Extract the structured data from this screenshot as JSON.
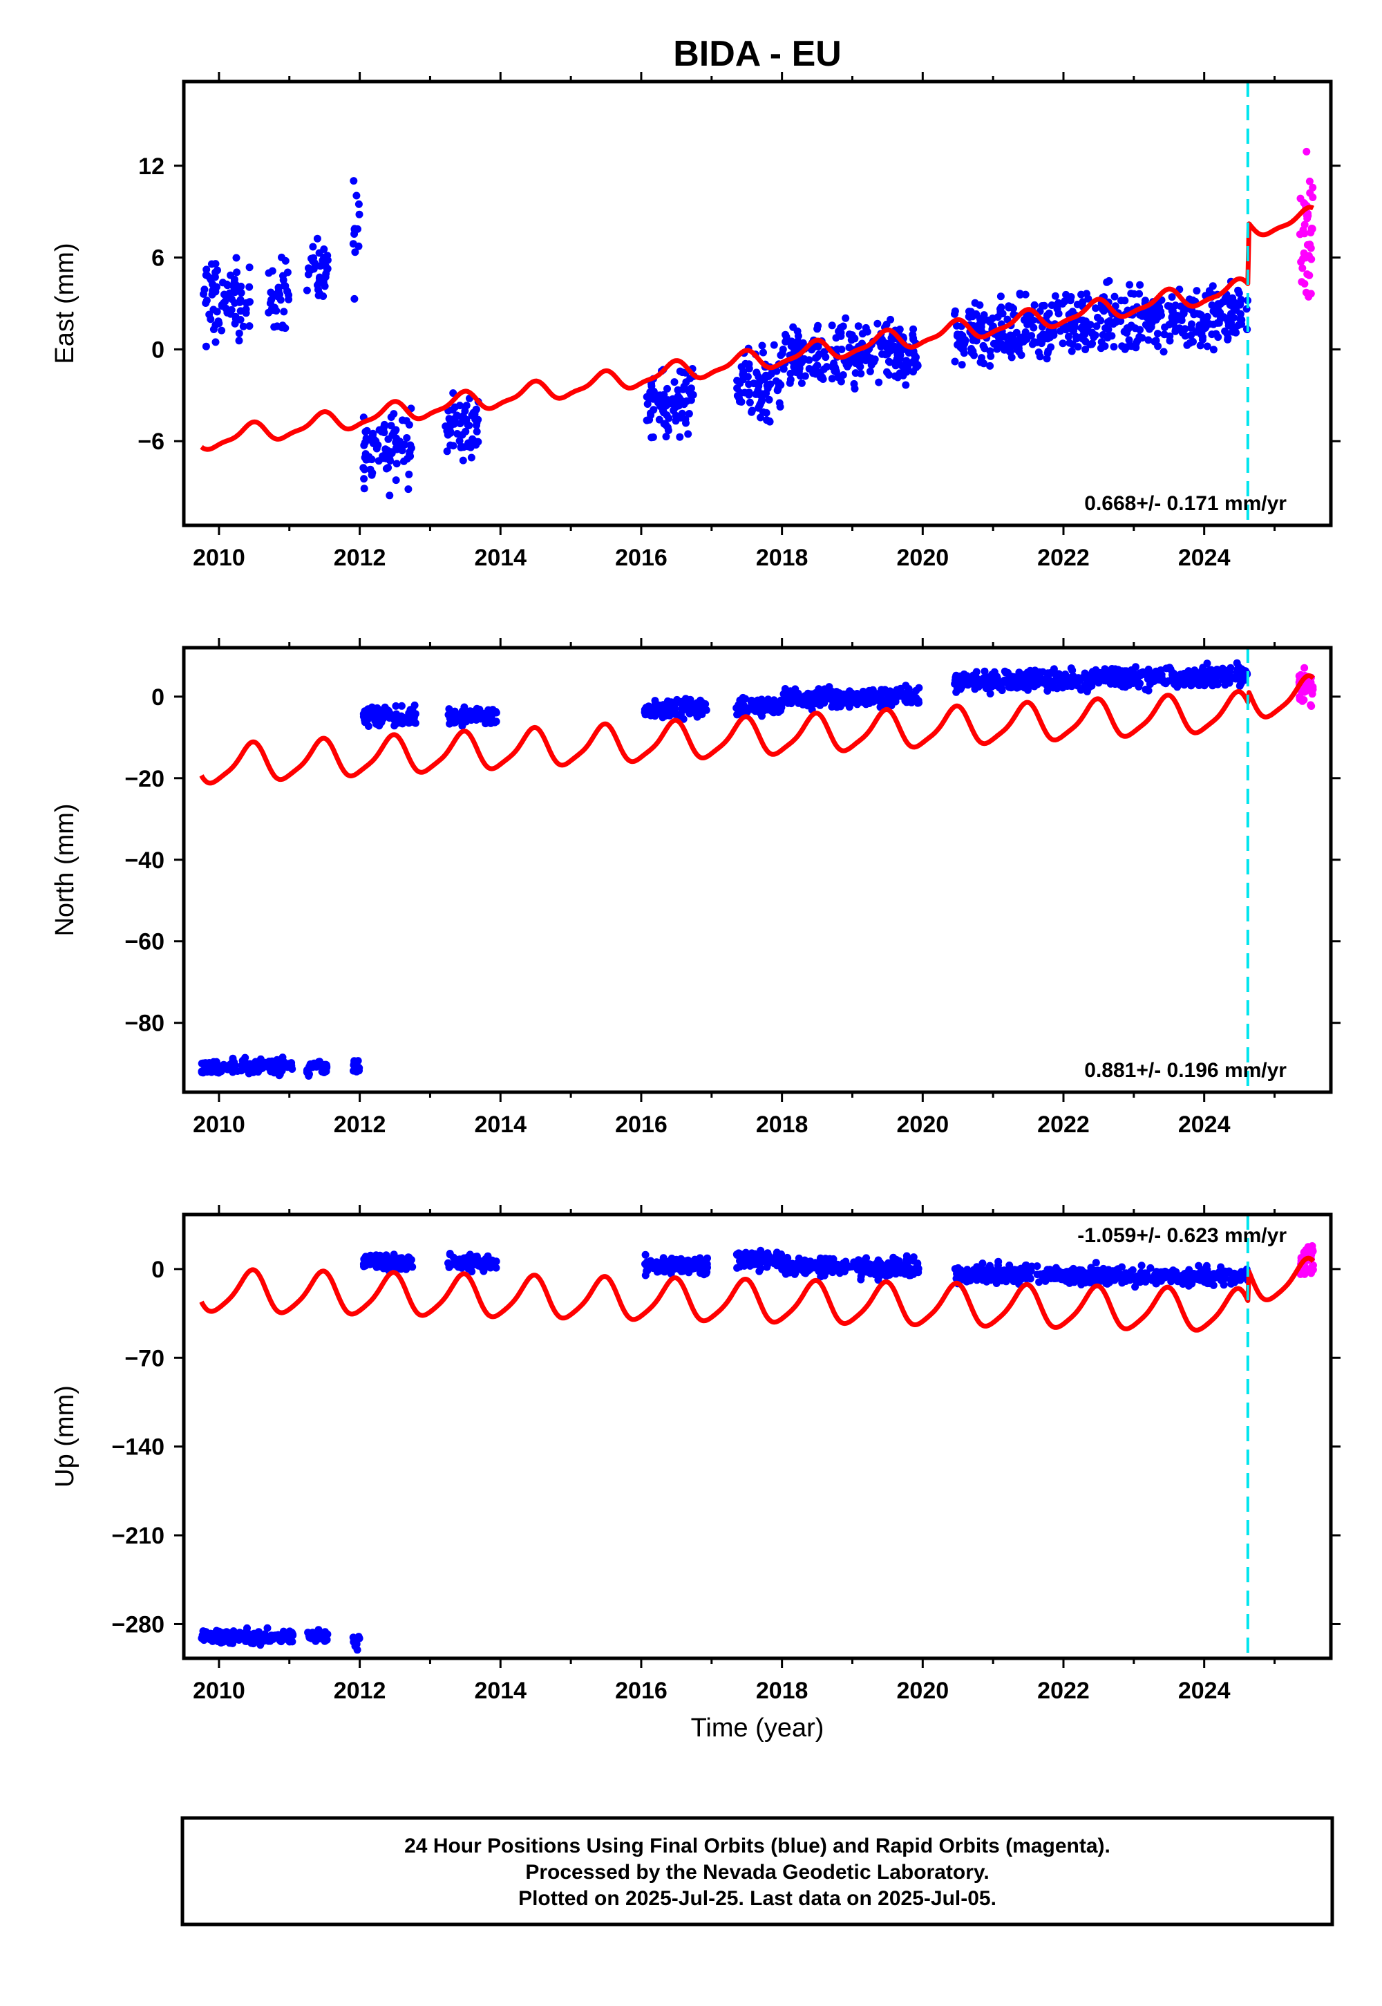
{
  "title": "BIDA - EU",
  "xlabel": "Time (year)",
  "footer": [
    "24 Hour Positions Using Final Orbits (blue) and Rapid Orbits (magenta).",
    "Processed by the Nevada Geodetic Laboratory.",
    "Plotted on 2025-Jul-25. Last data on 2025-Jul-05."
  ],
  "colors": {
    "final": "#0000ff",
    "rapid": "#ff00ff",
    "model": "#ff0000",
    "break": "#00e5ee"
  },
  "chart_data": [
    {
      "type": "scatter",
      "ylabel": "East (mm)",
      "xlim": [
        2009.5,
        2025.8
      ],
      "ylim": [
        -11.5,
        17.5
      ],
      "xticks": [
        2010,
        2012,
        2014,
        2016,
        2018,
        2020,
        2022,
        2024
      ],
      "yticks": [
        -6,
        0,
        6,
        12
      ],
      "rate_label": "0.668+/- 0.171 mm/yr",
      "break_x": 2024.62,
      "final_segments": [
        {
          "x": [
            2009.75,
            2010.45
          ],
          "y": 3.0,
          "spread": 1.8
        },
        {
          "x": [
            2010.7,
            2011.0
          ],
          "y": 3.6,
          "spread": 1.6
        },
        {
          "x": [
            2011.25,
            2011.55
          ],
          "y": 5.0,
          "spread": 1.3
        },
        {
          "x": [
            2011.9,
            2012.0
          ],
          "y": 7.5,
          "spread": 2.5
        },
        {
          "x": [
            2012.05,
            2012.75
          ],
          "y": -6.5,
          "spread": 1.8
        },
        {
          "x": [
            2013.2,
            2013.7
          ],
          "y": -5.0,
          "spread": 1.3
        },
        {
          "x": [
            2016.05,
            2016.75
          ],
          "y": -3.5,
          "spread": 1.5
        },
        {
          "x": [
            2017.35,
            2018.0
          ],
          "y": -2.5,
          "spread": 1.6
        },
        {
          "x": [
            2018.0,
            2019.95
          ],
          "y": -0.8,
          "spread": 1.4
        },
        {
          "x": [
            2020.45,
            2024.62
          ],
          "y": 1.0,
          "spread": 1.5
        }
      ],
      "rapid_points": {
        "x": [
          2025.35,
          2025.55
        ],
        "y": 7.5,
        "spread": 3.5
      },
      "model": {
        "start": 2009.75,
        "end": 2025.55,
        "y0": -6.0,
        "rate": 0.668,
        "amp": 0.6,
        "amp2": 0.2,
        "offsets": [
          {
            "x": 2024.62,
            "dy": 4.0
          }
        ]
      }
    },
    {
      "type": "scatter",
      "ylabel": "North (mm)",
      "xlim": [
        2009.5,
        2025.8
      ],
      "ylim": [
        -97,
        12
      ],
      "xticks": [
        2010,
        2012,
        2014,
        2016,
        2018,
        2020,
        2022,
        2024
      ],
      "yticks": [
        -80,
        -60,
        -40,
        -20,
        0
      ],
      "rate_label": "0.881+/- 0.196 mm/yr",
      "break_x": 2024.62,
      "final_segments": [
        {
          "x": [
            2009.75,
            2011.05
          ],
          "y": -91.0,
          "spread": 1.3
        },
        {
          "x": [
            2011.25,
            2011.55
          ],
          "y": -91.0,
          "spread": 1.3
        },
        {
          "x": [
            2011.9,
            2012.0
          ],
          "y": -91.0,
          "spread": 1.5
        },
        {
          "x": [
            2012.05,
            2012.8
          ],
          "y": -5.0,
          "spread": 1.5
        },
        {
          "x": [
            2013.25,
            2013.95
          ],
          "y": -5.0,
          "spread": 1.5
        },
        {
          "x": [
            2016.05,
            2016.95
          ],
          "y": -3.0,
          "spread": 1.5
        },
        {
          "x": [
            2017.35,
            2018.0
          ],
          "y": -2.5,
          "spread": 1.5
        },
        {
          "x": [
            2018.0,
            2019.95
          ],
          "y": -0.8,
          "spread": 1.6
        },
        {
          "x": [
            2020.45,
            2024.62
          ],
          "y": 3.5,
          "spread": 1.8
        }
      ],
      "rapid_points": {
        "x": [
          2025.35,
          2025.55
        ],
        "y": 2.0,
        "spread": 3.0
      },
      "model": {
        "start": 2009.75,
        "end": 2025.55,
        "y0": -17.0,
        "rate": 0.881,
        "amp": 4.5,
        "amp2": 1.0,
        "offsets": [
          {
            "x": 2024.62,
            "dy": 3.0
          }
        ]
      }
    },
    {
      "type": "scatter",
      "ylabel": "Up (mm)",
      "xlim": [
        2009.5,
        2025.8
      ],
      "ylim": [
        -307,
        43
      ],
      "xticks": [
        2010,
        2012,
        2014,
        2016,
        2018,
        2020,
        2022,
        2024
      ],
      "yticks": [
        -280,
        -210,
        -140,
        -70,
        0
      ],
      "rate_label": "-1.059+/- 0.623 mm/yr",
      "break_x": 2024.62,
      "final_segments": [
        {
          "x": [
            2009.75,
            2011.05
          ],
          "y": -290.0,
          "spread": 4.0
        },
        {
          "x": [
            2011.25,
            2011.55
          ],
          "y": -290.0,
          "spread": 3.5
        },
        {
          "x": [
            2011.9,
            2012.0
          ],
          "y": -293.0,
          "spread": 5.0
        },
        {
          "x": [
            2012.05,
            2012.75
          ],
          "y": 6.0,
          "spread": 4.0
        },
        {
          "x": [
            2013.25,
            2013.95
          ],
          "y": 5.0,
          "spread": 4.0
        },
        {
          "x": [
            2016.05,
            2016.95
          ],
          "y": 3.0,
          "spread": 4.5
        },
        {
          "x": [
            2017.35,
            2018.0
          ],
          "y": 7.0,
          "spread": 5.0
        },
        {
          "x": [
            2018.0,
            2019.95
          ],
          "y": 2.0,
          "spread": 5.0
        },
        {
          "x": [
            2020.45,
            2024.62
          ],
          "y": -4.0,
          "spread": 5.0
        }
      ],
      "rapid_points": {
        "x": [
          2025.35,
          2025.55
        ],
        "y": 8.0,
        "spread": 8.0
      },
      "model": {
        "start": 2009.75,
        "end": 2025.55,
        "y0": -18.0,
        "rate": -1.059,
        "amp": 16.0,
        "amp2": 3.0,
        "offsets": [
          {
            "x": 2024.62,
            "dy": 25.0
          }
        ]
      }
    }
  ]
}
